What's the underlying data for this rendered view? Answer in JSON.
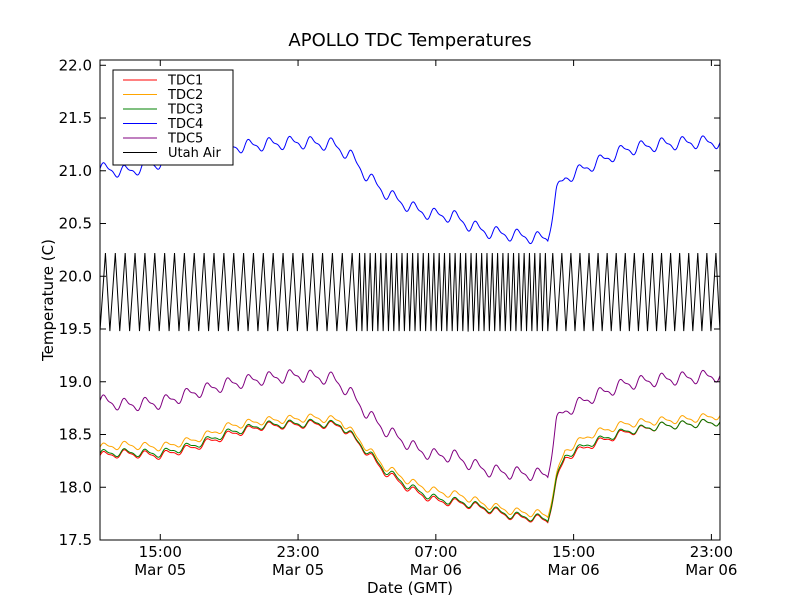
{
  "chart_data": {
    "type": "line",
    "title": "APOLLO TDC Temperatures",
    "xlabel": "Date (GMT)",
    "ylabel": "Temperature (C)",
    "ylim": [
      17.5,
      22.05
    ],
    "xlim_hours": [
      11.5,
      47.5
    ],
    "yticks": [
      "17.5",
      "18.0",
      "18.5",
      "19.0",
      "19.5",
      "20.0",
      "20.5",
      "21.0",
      "21.5",
      "22.0"
    ],
    "xticks": [
      {
        "hour": 15,
        "line1": "15:00",
        "line2": "Mar 05"
      },
      {
        "hour": 23,
        "line1": "23:00",
        "line2": "Mar 05"
      },
      {
        "hour": 31,
        "line1": "07:00",
        "line2": "Mar 06"
      },
      {
        "hour": 39,
        "line1": "15:00",
        "line2": "Mar 06"
      },
      {
        "hour": 47,
        "line1": "23:00",
        "line2": "Mar 06"
      }
    ],
    "legend_position": "top-left",
    "series": [
      {
        "name": "TDC1",
        "color": "#ff0000",
        "base": [
          [
            11.5,
            18.3
          ],
          [
            13,
            18.32
          ],
          [
            15,
            18.3
          ],
          [
            17,
            18.38
          ],
          [
            19,
            18.5
          ],
          [
            21,
            18.58
          ],
          [
            24,
            18.6
          ],
          [
            25.5,
            18.58
          ],
          [
            26.5,
            18.42
          ],
          [
            28,
            18.15
          ],
          [
            29.5,
            17.98
          ],
          [
            31,
            17.87
          ],
          [
            32.5,
            17.85
          ],
          [
            34,
            17.79
          ],
          [
            35.5,
            17.72
          ],
          [
            37,
            17.7
          ],
          [
            37.5,
            17.68
          ],
          [
            38,
            18.05
          ],
          [
            38.5,
            18.28
          ],
          [
            40,
            18.4
          ],
          [
            42,
            18.52
          ],
          [
            44,
            18.58
          ],
          [
            46,
            18.6
          ],
          [
            47.5,
            18.62
          ]
        ],
        "wiggle": 0.03
      },
      {
        "name": "TDC2",
        "color": "#ffa500",
        "base": [
          [
            11.5,
            18.38
          ],
          [
            13,
            18.4
          ],
          [
            15,
            18.38
          ],
          [
            17,
            18.45
          ],
          [
            19,
            18.58
          ],
          [
            21,
            18.63
          ],
          [
            24,
            18.66
          ],
          [
            25.5,
            18.63
          ],
          [
            26.5,
            18.46
          ],
          [
            28,
            18.2
          ],
          [
            29.5,
            18.05
          ],
          [
            31,
            17.96
          ],
          [
            32.5,
            17.92
          ],
          [
            34,
            17.83
          ],
          [
            35.5,
            17.77
          ],
          [
            37,
            17.75
          ],
          [
            37.5,
            17.73
          ],
          [
            38,
            18.1
          ],
          [
            38.5,
            18.35
          ],
          [
            40,
            18.5
          ],
          [
            42,
            18.6
          ],
          [
            44,
            18.63
          ],
          [
            46,
            18.65
          ],
          [
            47.5,
            18.68
          ]
        ],
        "wiggle": 0.03
      },
      {
        "name": "TDC3",
        "color": "#008000",
        "base": [
          [
            11.5,
            18.32
          ],
          [
            13,
            18.33
          ],
          [
            15,
            18.32
          ],
          [
            17,
            18.4
          ],
          [
            19,
            18.52
          ],
          [
            21,
            18.59
          ],
          [
            24,
            18.61
          ],
          [
            25.5,
            18.59
          ],
          [
            26.5,
            18.43
          ],
          [
            28,
            18.17
          ],
          [
            29.5,
            18.0
          ],
          [
            31,
            17.89
          ],
          [
            32.5,
            17.86
          ],
          [
            34,
            17.8
          ],
          [
            35.5,
            17.73
          ],
          [
            37,
            17.71
          ],
          [
            37.5,
            17.69
          ],
          [
            38,
            18.07
          ],
          [
            38.5,
            18.3
          ],
          [
            40,
            18.42
          ],
          [
            42,
            18.53
          ],
          [
            44,
            18.58
          ],
          [
            46,
            18.6
          ],
          [
            47.5,
            18.62
          ]
        ],
        "wiggle": 0.03
      },
      {
        "name": "TDC4",
        "color": "#0000ff",
        "base": [
          [
            11.5,
            21.02
          ],
          [
            13,
            20.99
          ],
          [
            15,
            21.08
          ],
          [
            17,
            21.15
          ],
          [
            19,
            21.22
          ],
          [
            21,
            21.25
          ],
          [
            23,
            21.27
          ],
          [
            25,
            21.25
          ],
          [
            26,
            21.15
          ],
          [
            27,
            20.95
          ],
          [
            28,
            20.8
          ],
          [
            29,
            20.7
          ],
          [
            30,
            20.62
          ],
          [
            31,
            20.58
          ],
          [
            32,
            20.57
          ],
          [
            33,
            20.48
          ],
          [
            34,
            20.42
          ],
          [
            35,
            20.4
          ],
          [
            36,
            20.38
          ],
          [
            37,
            20.36
          ],
          [
            37.5,
            20.36
          ],
          [
            38,
            20.8
          ],
          [
            38.5,
            20.93
          ],
          [
            40,
            21.05
          ],
          [
            42,
            21.2
          ],
          [
            44,
            21.25
          ],
          [
            46,
            21.27
          ],
          [
            47.5,
            21.27
          ]
        ],
        "wiggle": 0.05
      },
      {
        "name": "TDC5",
        "color": "#800080",
        "base": [
          [
            11.5,
            18.82
          ],
          [
            13,
            18.78
          ],
          [
            15,
            18.8
          ],
          [
            17,
            18.9
          ],
          [
            19,
            18.98
          ],
          [
            21,
            19.03
          ],
          [
            23,
            19.06
          ],
          [
            25,
            19.03
          ],
          [
            26,
            18.9
          ],
          [
            27,
            18.7
          ],
          [
            28,
            18.55
          ],
          [
            29,
            18.45
          ],
          [
            30,
            18.35
          ],
          [
            31,
            18.3
          ],
          [
            32,
            18.3
          ],
          [
            33,
            18.22
          ],
          [
            34,
            18.16
          ],
          [
            35,
            18.14
          ],
          [
            36,
            18.13
          ],
          [
            37,
            18.12
          ],
          [
            37.5,
            18.12
          ],
          [
            38,
            18.62
          ],
          [
            38.5,
            18.72
          ],
          [
            40,
            18.85
          ],
          [
            42,
            18.98
          ],
          [
            44,
            19.02
          ],
          [
            46,
            19.04
          ],
          [
            47.5,
            19.06
          ]
        ],
        "wiggle": 0.05
      },
      {
        "name": "Utah Air",
        "color": "#000000",
        "osc_low": 19.48,
        "osc_high": 20.22,
        "cycles_phase1": [
          11.5,
          26.4,
          26
        ],
        "cycles_phase2": [
          26.4,
          37.5,
          36
        ],
        "cycles_phase3": [
          37.5,
          47.5,
          19
        ]
      }
    ]
  }
}
